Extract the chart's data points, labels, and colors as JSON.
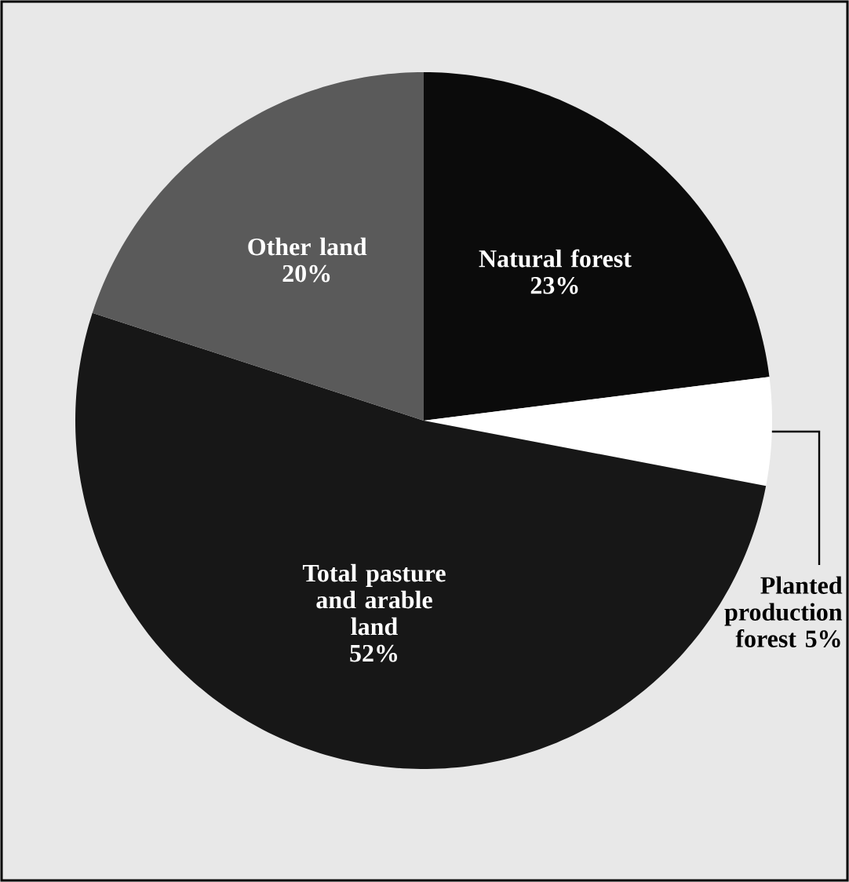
{
  "chart_data": {
    "type": "pie",
    "categories": [
      "Natural forest",
      "Planted production forest",
      "Total pasture and arable land",
      "Other land"
    ],
    "values": [
      23,
      5,
      52,
      20
    ],
    "colors": [
      "#0b0b0b",
      "#ffffff",
      "#171717",
      "#5a5a5a"
    ],
    "value_labels": [
      "23%",
      "5%",
      "52%",
      "20%"
    ]
  }
}
